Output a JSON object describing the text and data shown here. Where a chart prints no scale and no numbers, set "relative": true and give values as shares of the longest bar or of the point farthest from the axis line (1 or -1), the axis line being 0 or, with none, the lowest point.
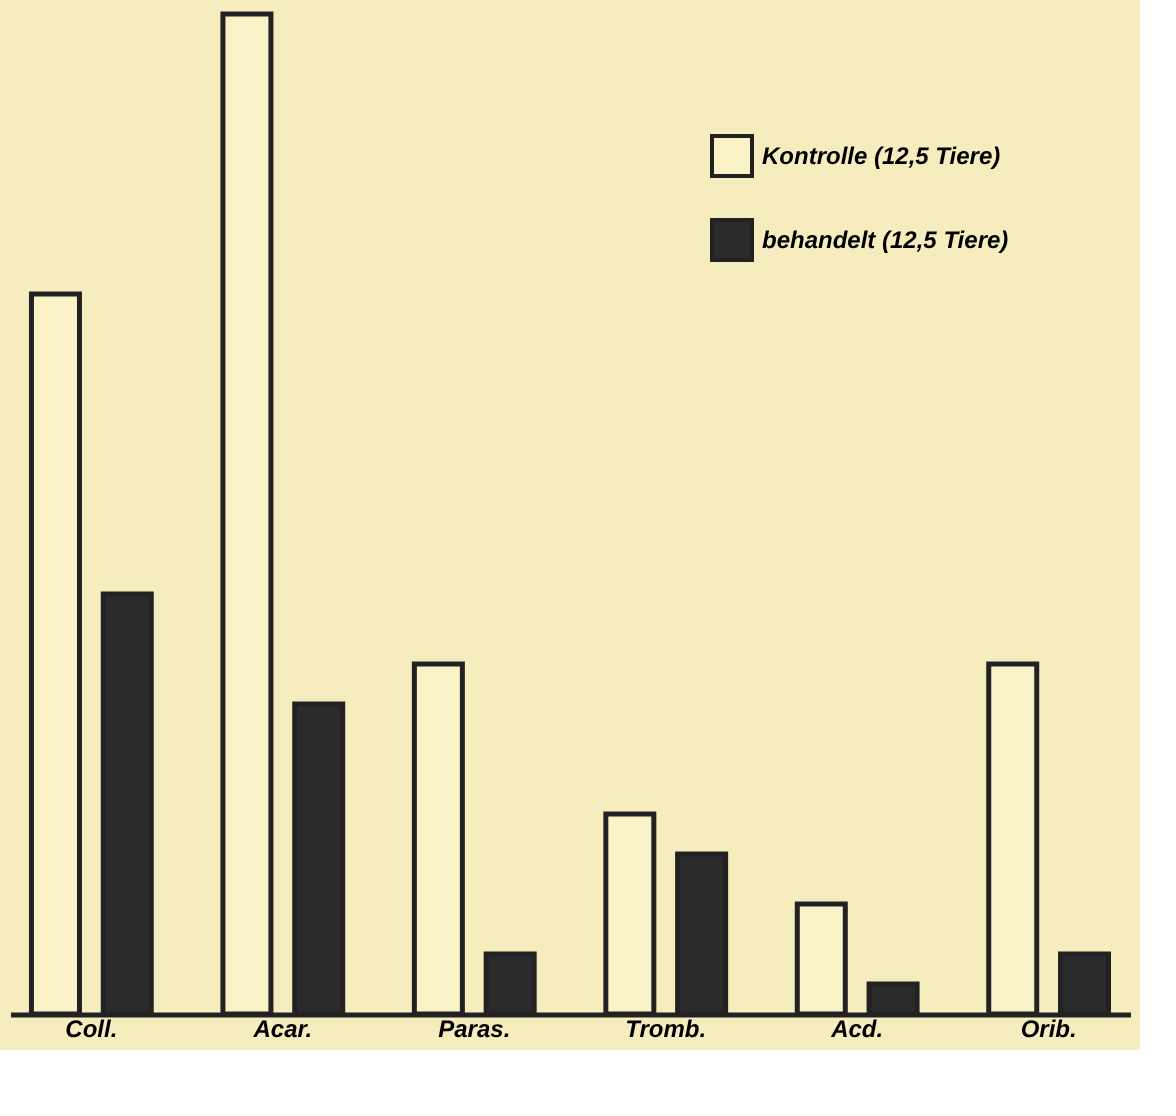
{
  "chart_data": {
    "type": "bar",
    "relative": true,
    "categories": [
      "Coll.",
      "Acar.",
      "Paras.",
      "Tromb.",
      "Acd.",
      "Orib."
    ],
    "series": [
      {
        "name": "Kontrolle (12,5 Tiere)",
        "color": "#faf3c8",
        "values": [
          0.72,
          1,
          0.35,
          0.2,
          0.11,
          0.35
        ]
      },
      {
        "name": "behandelt (12,5 Tiere)",
        "color": "#2b2b2b",
        "values": [
          0.42,
          0.31,
          0.06,
          0.16,
          0.03,
          0.06
        ]
      }
    ],
    "legend": "top right",
    "grid": false
  }
}
